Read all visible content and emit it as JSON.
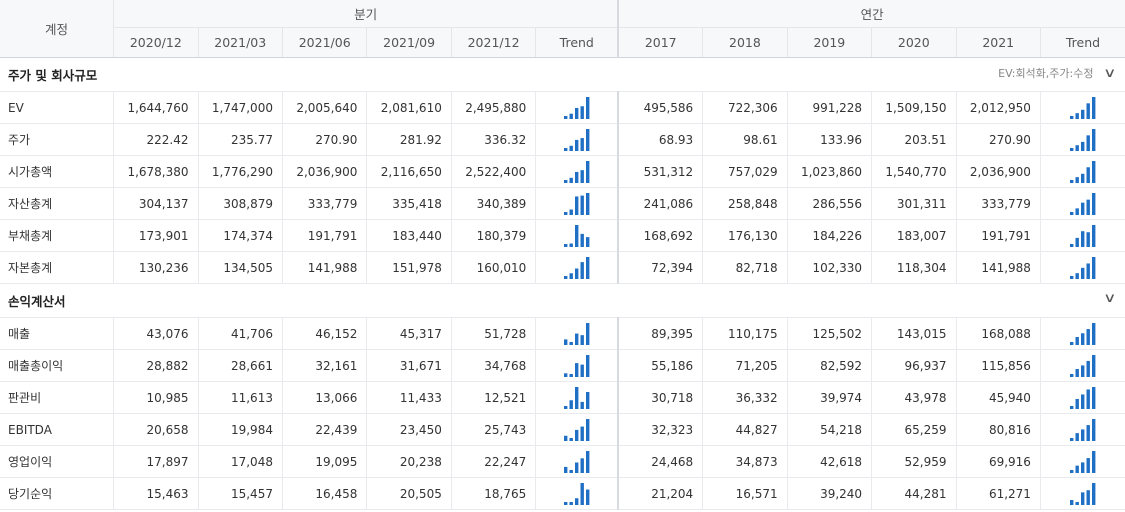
{
  "header": {
    "account_label": "계정",
    "quarterly_label": "분기",
    "annual_label": "연간",
    "quarters": [
      "2020/12",
      "2021/03",
      "2021/06",
      "2021/09",
      "2021/12"
    ],
    "years": [
      "2017",
      "2018",
      "2019",
      "2020",
      "2021"
    ],
    "trend_label": "Trend"
  },
  "sections": [
    {
      "title": "주가 및 회사규모",
      "note": "EV:회석화,주가:수정",
      "rows": [
        {
          "label": "EV",
          "q": [
            "1,644,760",
            "1,747,000",
            "2,005,640",
            "2,081,610",
            "2,495,880"
          ],
          "y": [
            "495,586",
            "722,306",
            "991,228",
            "1,509,150",
            "2,012,950"
          ]
        },
        {
          "label": "주가",
          "q": [
            "222.42",
            "235.77",
            "270.90",
            "281.92",
            "336.32"
          ],
          "y": [
            "68.93",
            "98.61",
            "133.96",
            "203.51",
            "270.90"
          ]
        },
        {
          "label": "시가총액",
          "q": [
            "1,678,380",
            "1,776,290",
            "2,036,900",
            "2,116,650",
            "2,522,400"
          ],
          "y": [
            "531,312",
            "757,029",
            "1,023,860",
            "1,540,770",
            "2,036,900"
          ]
        },
        {
          "label": "자산총계",
          "q": [
            "304,137",
            "308,879",
            "333,779",
            "335,418",
            "340,389"
          ],
          "y": [
            "241,086",
            "258,848",
            "286,556",
            "301,311",
            "333,779"
          ]
        },
        {
          "label": "부채총계",
          "q": [
            "173,901",
            "174,374",
            "191,791",
            "183,440",
            "180,379"
          ],
          "y": [
            "168,692",
            "176,130",
            "184,226",
            "183,007",
            "191,791"
          ]
        },
        {
          "label": "자본총계",
          "q": [
            "130,236",
            "134,505",
            "141,988",
            "151,978",
            "160,010"
          ],
          "y": [
            "72,394",
            "82,718",
            "102,330",
            "118,304",
            "141,988"
          ]
        }
      ]
    },
    {
      "title": "손익계산서",
      "note": "",
      "rows": [
        {
          "label": "매출",
          "q": [
            "43,076",
            "41,706",
            "46,152",
            "45,317",
            "51,728"
          ],
          "y": [
            "89,395",
            "110,175",
            "125,502",
            "143,015",
            "168,088"
          ]
        },
        {
          "label": "매출총이익",
          "q": [
            "28,882",
            "28,661",
            "32,161",
            "31,671",
            "34,768"
          ],
          "y": [
            "55,186",
            "71,205",
            "82,592",
            "96,937",
            "115,856"
          ]
        },
        {
          "label": "판관비",
          "q": [
            "10,985",
            "11,613",
            "13,066",
            "11,433",
            "12,521"
          ],
          "y": [
            "30,718",
            "36,332",
            "39,974",
            "43,978",
            "45,940"
          ]
        },
        {
          "label": "EBITDA",
          "q": [
            "20,658",
            "19,984",
            "22,439",
            "23,450",
            "25,743"
          ],
          "y": [
            "32,323",
            "44,827",
            "54,218",
            "65,259",
            "80,816"
          ]
        },
        {
          "label": "영업이익",
          "q": [
            "17,897",
            "17,048",
            "19,095",
            "20,238",
            "22,247"
          ],
          "y": [
            "24,468",
            "34,873",
            "42,618",
            "52,959",
            "69,916"
          ]
        },
        {
          "label": "당기순익",
          "q": [
            "15,463",
            "15,457",
            "16,458",
            "20,505",
            "18,765"
          ],
          "y": [
            "21,204",
            "16,571",
            "39,240",
            "44,281",
            "61,271"
          ]
        }
      ]
    }
  ],
  "colors": {
    "bar": "#1f6fc5",
    "header_bg": "#f7f8fa"
  }
}
